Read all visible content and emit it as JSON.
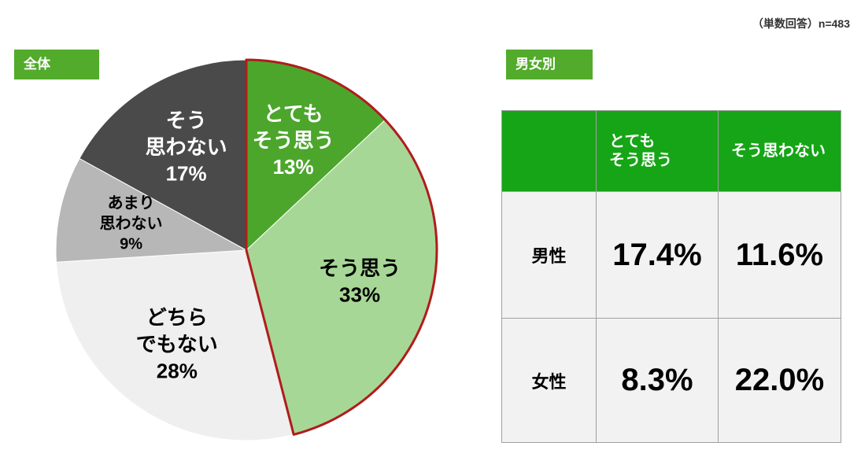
{
  "note": "（単数回答）n=483",
  "chart_data": {
    "type": "pie",
    "title": "全体",
    "categories": [
      [
        "とても",
        "そう思う"
      ],
      [
        "そう思う"
      ],
      [
        "どちら",
        "でもない"
      ],
      [
        "あまり",
        "思わない"
      ],
      [
        "そう",
        "思わない"
      ]
    ],
    "values": [
      13,
      33,
      28,
      9,
      17
    ],
    "value_labels": [
      "13%",
      "33%",
      "28%",
      "9%",
      "17%"
    ],
    "colors": [
      "#4ca62c",
      "#a7d796",
      "#efefef",
      "#b7b7b7",
      "#4a4a4a"
    ],
    "label_colors": [
      "#ffffff",
      "#000000",
      "#000000",
      "#000000",
      "#ffffff"
    ],
    "highlight": {
      "slices": [
        0,
        1
      ],
      "color": "#b01c1c"
    }
  },
  "table": {
    "title": "男女別",
    "columns": [
      "とても\nそう思う",
      "そう思わない"
    ],
    "rows": [
      [
        "男性",
        "17.4%",
        "11.6%"
      ],
      [
        "女性",
        "8.3%",
        "22.0%"
      ]
    ]
  }
}
